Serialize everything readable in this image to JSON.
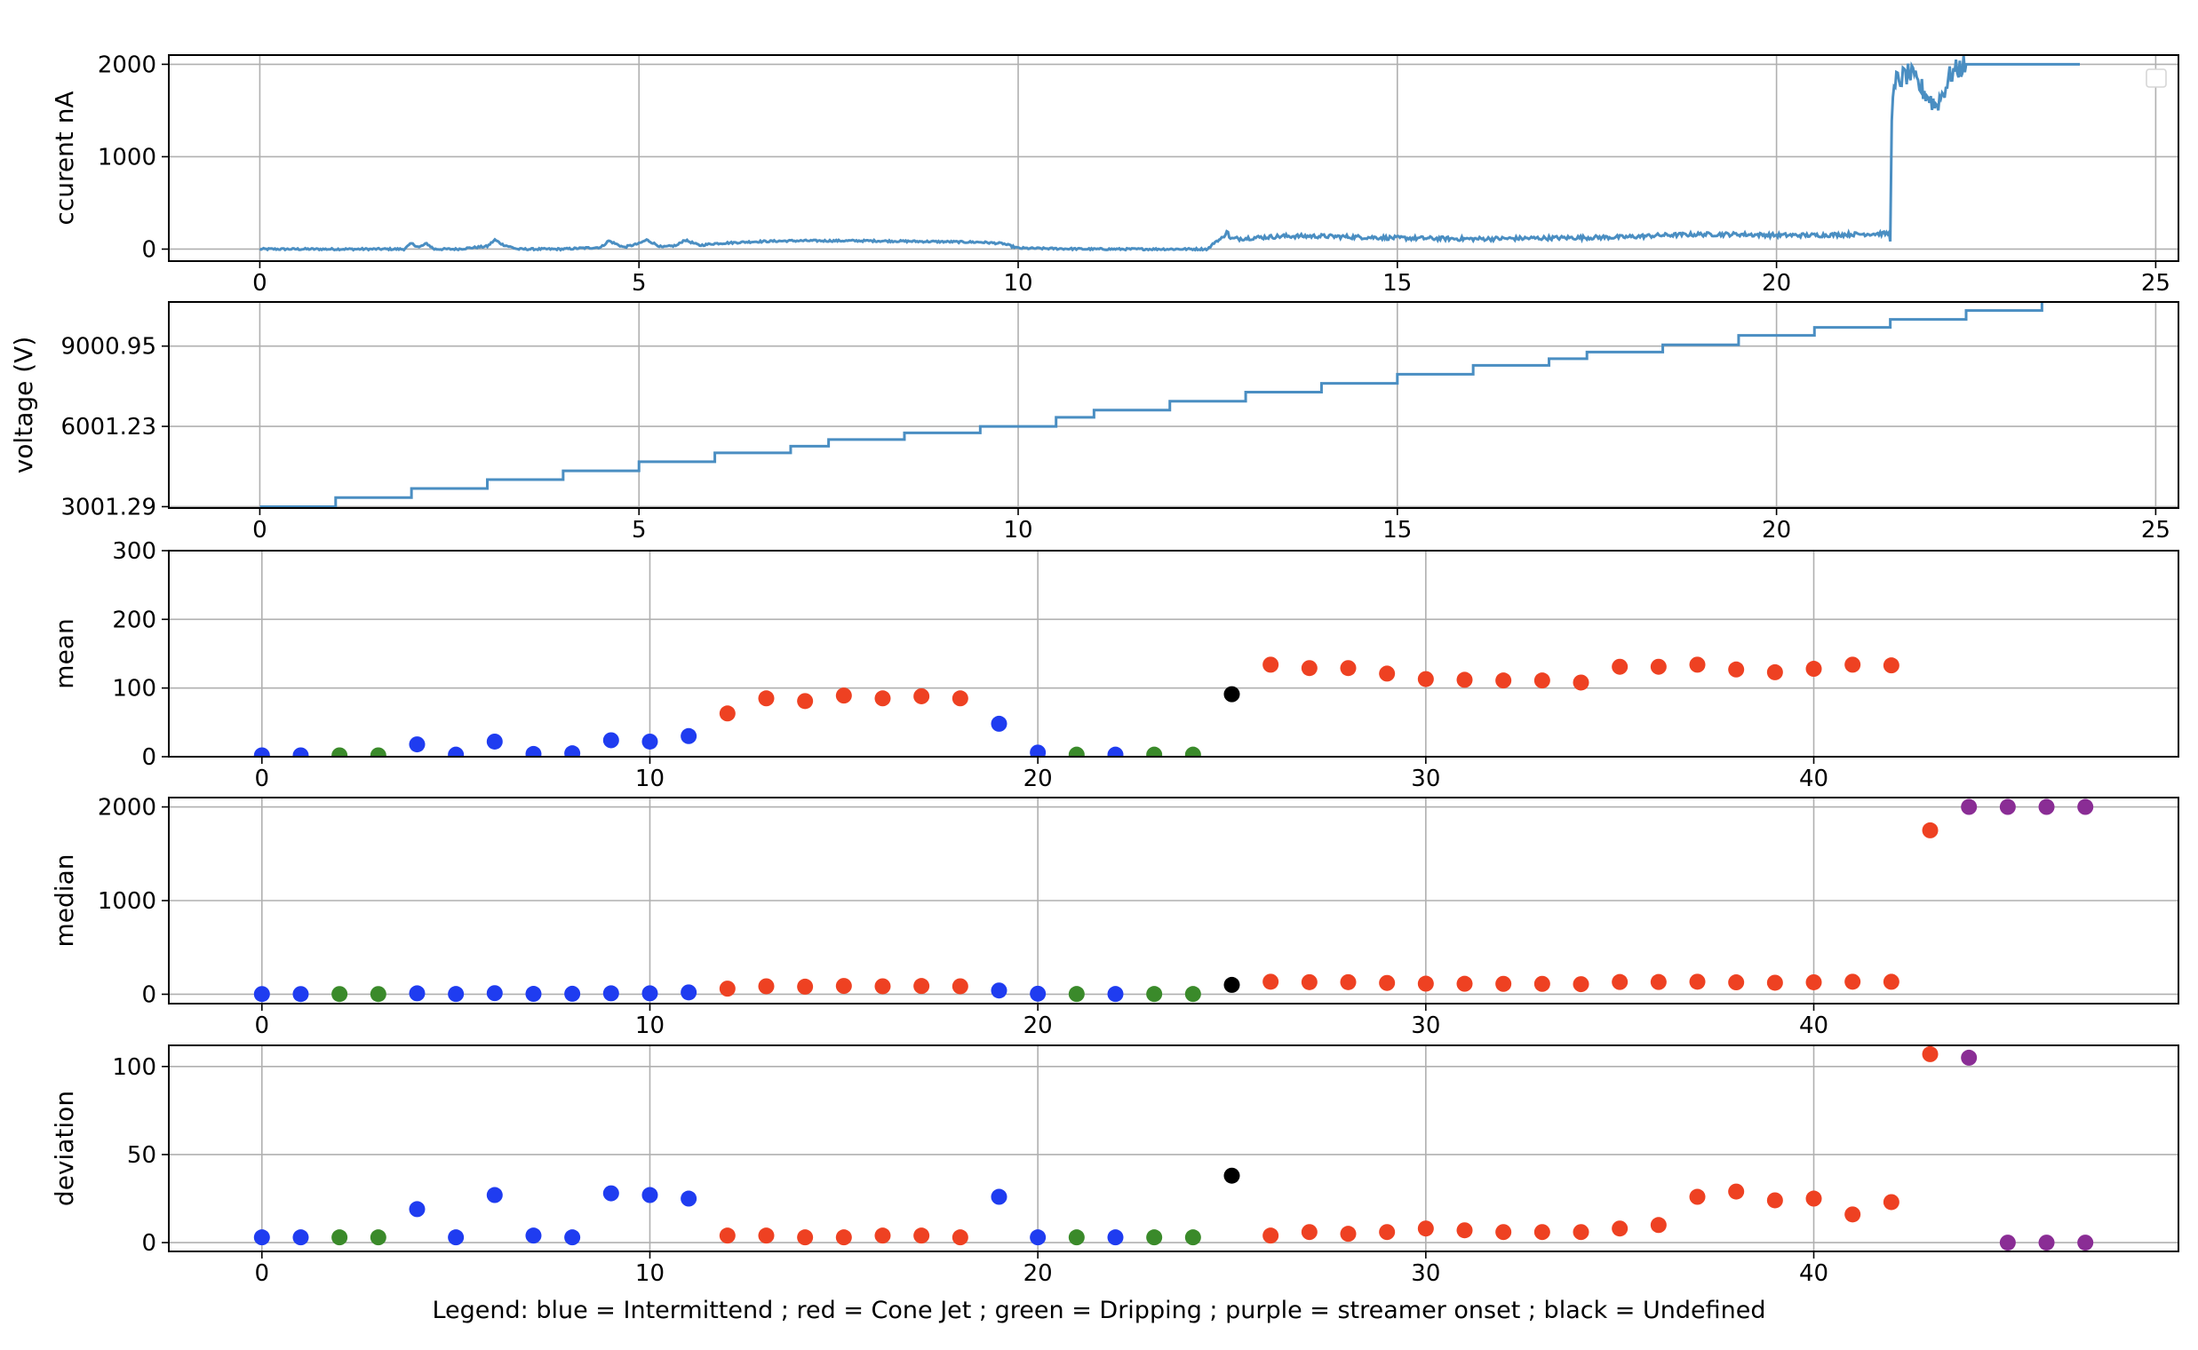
{
  "legend_text": "Legend:  blue = Intermittend ; red = Cone Jet ; green = Dripping ; purple = streamer onset ; black = Undefined",
  "colors": {
    "line": "#4a8ec2",
    "Intermittend": "#1f3cf0",
    "Cone Jet": "#ee4122",
    "Dripping": "#3a8a2a",
    "streamer onset": "#8a2d95",
    "Undefined": "#000000"
  },
  "chart_data": [
    {
      "id": "current",
      "type": "line",
      "ylabel": "ccurent nA",
      "xlim": [
        -1.2,
        25.3
      ],
      "ylim": [
        -130,
        2100
      ],
      "xticks": [
        0,
        5,
        10,
        15,
        20,
        25
      ],
      "yticks": [
        0,
        1000,
        2000
      ],
      "ytick_labels": [
        "0",
        "1000",
        "2000"
      ],
      "grid": true,
      "empty_legend": "top-right",
      "series": [
        {
          "x": [
            0,
            1,
            1.9,
            2.0,
            2.1,
            2.2,
            2.3,
            2.6,
            3.0,
            3.1,
            3.2,
            3.4,
            4.0,
            4.5,
            4.6,
            4.8,
            5.0,
            5.1,
            5.3,
            5.5,
            5.6,
            5.8,
            6.0,
            6.5,
            7.0,
            8.0,
            9.0,
            9.5,
            9.8,
            10.0,
            11.0,
            12.0,
            12.5,
            12.6,
            12.7,
            12.75,
            12.8,
            13.5,
            14.0,
            15.0,
            16.0,
            17.0,
            18.0,
            18.5,
            19.0,
            19.5,
            20.0,
            20.5,
            21.0,
            21.5,
            21.52,
            21.58,
            21.65,
            21.75,
            21.9,
            22.0,
            22.1,
            22.2,
            22.3,
            22.5,
            23.0,
            23.5,
            24.0
          ],
          "y": [
            0,
            0,
            0,
            60,
            20,
            60,
            0,
            0,
            30,
            100,
            50,
            0,
            0,
            20,
            90,
            20,
            60,
            100,
            20,
            40,
            100,
            40,
            60,
            80,
            90,
            90,
            80,
            75,
            60,
            10,
            0,
            0,
            0,
            80,
            120,
            200,
            110,
            140,
            140,
            120,
            110,
            120,
            130,
            150,
            160,
            160,
            150,
            150,
            160,
            170,
            1500,
            1820,
            1850,
            1900,
            1750,
            1650,
            1550,
            1700,
            1900,
            2000,
            2000,
            2000,
            2000
          ]
        }
      ]
    },
    {
      "id": "voltage",
      "type": "line",
      "ylabel": "voltage (V)",
      "xlim": [
        -1.2,
        25.3
      ],
      "ylim": [
        2950,
        10650
      ],
      "xticks": [
        0,
        5,
        10,
        15,
        20,
        25
      ],
      "yticks": [
        3001.29,
        6001.23,
        9000.95
      ],
      "ytick_labels": [
        "3001.29",
        "6001.23",
        "9000.95"
      ],
      "grid": true,
      "series": [
        {
          "steps": [
            [
              0,
              3001
            ],
            [
              1,
              3340
            ],
            [
              2,
              3680
            ],
            [
              3,
              4010
            ],
            [
              4,
              4340
            ],
            [
              5,
              4680
            ],
            [
              6,
              5010
            ],
            [
              7,
              5260
            ],
            [
              7.5,
              5510
            ],
            [
              8.5,
              5760
            ],
            [
              9.5,
              6001
            ],
            [
              10.5,
              6340
            ],
            [
              11,
              6610
            ],
            [
              12,
              6940
            ],
            [
              13,
              7280
            ],
            [
              14,
              7610
            ],
            [
              15,
              7950
            ],
            [
              16,
              8280
            ],
            [
              17,
              8530
            ],
            [
              17.5,
              8780
            ],
            [
              18.5,
              9050
            ],
            [
              19.5,
              9400
            ],
            [
              20.5,
              9700
            ],
            [
              21.5,
              10000
            ],
            [
              22.5,
              10330
            ],
            [
              23.5,
              10700
            ]
          ],
          "x_end": 24
        }
      ]
    },
    {
      "id": "mean",
      "type": "scatter",
      "ylabel": "mean",
      "xlim": [
        -2.4,
        49.4
      ],
      "ylim": [
        0,
        300
      ],
      "xticks": [
        0,
        10,
        20,
        30,
        40
      ],
      "yticks": [
        0,
        100,
        200,
        300
      ],
      "ytick_labels": [
        "0",
        "100",
        "200",
        "300"
      ],
      "grid": true,
      "points": [
        [
          0,
          2,
          "Intermittend"
        ],
        [
          1,
          2,
          "Intermittend"
        ],
        [
          2,
          2,
          "Dripping"
        ],
        [
          3,
          2,
          "Dripping"
        ],
        [
          4,
          18,
          "Intermittend"
        ],
        [
          5,
          3,
          "Intermittend"
        ],
        [
          6,
          22,
          "Intermittend"
        ],
        [
          7,
          4,
          "Intermittend"
        ],
        [
          8,
          5,
          "Intermittend"
        ],
        [
          9,
          24,
          "Intermittend"
        ],
        [
          10,
          22,
          "Intermittend"
        ],
        [
          11,
          30,
          "Intermittend"
        ],
        [
          12,
          63,
          "Cone Jet"
        ],
        [
          13,
          85,
          "Cone Jet"
        ],
        [
          14,
          81,
          "Cone Jet"
        ],
        [
          15,
          89,
          "Cone Jet"
        ],
        [
          16,
          85,
          "Cone Jet"
        ],
        [
          17,
          88,
          "Cone Jet"
        ],
        [
          18,
          85,
          "Cone Jet"
        ],
        [
          19,
          48,
          "Intermittend"
        ],
        [
          20,
          6,
          "Intermittend"
        ],
        [
          21,
          3,
          "Dripping"
        ],
        [
          22,
          3,
          "Intermittend"
        ],
        [
          23,
          3,
          "Dripping"
        ],
        [
          24,
          3,
          "Dripping"
        ],
        [
          25,
          91,
          "Undefined"
        ],
        [
          26,
          134,
          "Cone Jet"
        ],
        [
          27,
          129,
          "Cone Jet"
        ],
        [
          28,
          129,
          "Cone Jet"
        ],
        [
          29,
          121,
          "Cone Jet"
        ],
        [
          30,
          113,
          "Cone Jet"
        ],
        [
          31,
          112,
          "Cone Jet"
        ],
        [
          32,
          111,
          "Cone Jet"
        ],
        [
          33,
          111,
          "Cone Jet"
        ],
        [
          34,
          108,
          "Cone Jet"
        ],
        [
          35,
          131,
          "Cone Jet"
        ],
        [
          36,
          131,
          "Cone Jet"
        ],
        [
          37,
          134,
          "Cone Jet"
        ],
        [
          38,
          127,
          "Cone Jet"
        ],
        [
          39,
          123,
          "Cone Jet"
        ],
        [
          40,
          128,
          "Cone Jet"
        ],
        [
          41,
          134,
          "Cone Jet"
        ],
        [
          42,
          133,
          "Cone Jet"
        ]
      ]
    },
    {
      "id": "median",
      "type": "scatter",
      "ylabel": "median",
      "xlim": [
        -2.4,
        49.4
      ],
      "ylim": [
        -100,
        2100
      ],
      "xticks": [
        0,
        10,
        20,
        30,
        40
      ],
      "yticks": [
        0,
        1000,
        2000
      ],
      "ytick_labels": [
        "0",
        "1000",
        "2000"
      ],
      "grid": true,
      "points": [
        [
          0,
          2,
          "Intermittend"
        ],
        [
          1,
          2,
          "Intermittend"
        ],
        [
          2,
          2,
          "Dripping"
        ],
        [
          3,
          2,
          "Dripping"
        ],
        [
          4,
          10,
          "Intermittend"
        ],
        [
          5,
          3,
          "Intermittend"
        ],
        [
          6,
          12,
          "Intermittend"
        ],
        [
          7,
          4,
          "Intermittend"
        ],
        [
          8,
          5,
          "Intermittend"
        ],
        [
          9,
          10,
          "Intermittend"
        ],
        [
          10,
          10,
          "Intermittend"
        ],
        [
          11,
          20,
          "Intermittend"
        ],
        [
          12,
          60,
          "Cone Jet"
        ],
        [
          13,
          85,
          "Cone Jet"
        ],
        [
          14,
          81,
          "Cone Jet"
        ],
        [
          15,
          89,
          "Cone Jet"
        ],
        [
          16,
          85,
          "Cone Jet"
        ],
        [
          17,
          88,
          "Cone Jet"
        ],
        [
          18,
          85,
          "Cone Jet"
        ],
        [
          19,
          40,
          "Intermittend"
        ],
        [
          20,
          6,
          "Intermittend"
        ],
        [
          21,
          3,
          "Dripping"
        ],
        [
          22,
          3,
          "Intermittend"
        ],
        [
          23,
          3,
          "Dripping"
        ],
        [
          24,
          3,
          "Dripping"
        ],
        [
          25,
          100,
          "Undefined"
        ],
        [
          26,
          134,
          "Cone Jet"
        ],
        [
          27,
          129,
          "Cone Jet"
        ],
        [
          28,
          129,
          "Cone Jet"
        ],
        [
          29,
          121,
          "Cone Jet"
        ],
        [
          30,
          113,
          "Cone Jet"
        ],
        [
          31,
          112,
          "Cone Jet"
        ],
        [
          32,
          111,
          "Cone Jet"
        ],
        [
          33,
          111,
          "Cone Jet"
        ],
        [
          34,
          108,
          "Cone Jet"
        ],
        [
          35,
          131,
          "Cone Jet"
        ],
        [
          36,
          131,
          "Cone Jet"
        ],
        [
          37,
          134,
          "Cone Jet"
        ],
        [
          38,
          127,
          "Cone Jet"
        ],
        [
          39,
          123,
          "Cone Jet"
        ],
        [
          40,
          128,
          "Cone Jet"
        ],
        [
          41,
          134,
          "Cone Jet"
        ],
        [
          42,
          133,
          "Cone Jet"
        ],
        [
          43,
          1750,
          "Cone Jet"
        ],
        [
          44,
          2000,
          "streamer onset"
        ],
        [
          45,
          2000,
          "streamer onset"
        ],
        [
          46,
          2000,
          "streamer onset"
        ],
        [
          47,
          2000,
          "streamer onset"
        ]
      ]
    },
    {
      "id": "deviation",
      "type": "scatter",
      "ylabel": "deviation",
      "xlim": [
        -2.4,
        49.4
      ],
      "ylim": [
        -5,
        112
      ],
      "xticks": [
        0,
        10,
        20,
        30,
        40
      ],
      "yticks": [
        0,
        50,
        100
      ],
      "ytick_labels": [
        "0",
        "50",
        "100"
      ],
      "grid": true,
      "points": [
        [
          0,
          3,
          "Intermittend"
        ],
        [
          1,
          3,
          "Intermittend"
        ],
        [
          2,
          3,
          "Dripping"
        ],
        [
          3,
          3,
          "Dripping"
        ],
        [
          4,
          19,
          "Intermittend"
        ],
        [
          5,
          3,
          "Intermittend"
        ],
        [
          6,
          27,
          "Intermittend"
        ],
        [
          7,
          4,
          "Intermittend"
        ],
        [
          8,
          3,
          "Intermittend"
        ],
        [
          9,
          28,
          "Intermittend"
        ],
        [
          10,
          27,
          "Intermittend"
        ],
        [
          11,
          25,
          "Intermittend"
        ],
        [
          12,
          4,
          "Cone Jet"
        ],
        [
          13,
          4,
          "Cone Jet"
        ],
        [
          14,
          3,
          "Cone Jet"
        ],
        [
          15,
          3,
          "Cone Jet"
        ],
        [
          16,
          4,
          "Cone Jet"
        ],
        [
          17,
          4,
          "Cone Jet"
        ],
        [
          18,
          3,
          "Cone Jet"
        ],
        [
          19,
          26,
          "Intermittend"
        ],
        [
          20,
          3,
          "Intermittend"
        ],
        [
          21,
          3,
          "Dripping"
        ],
        [
          22,
          3,
          "Intermittend"
        ],
        [
          23,
          3,
          "Dripping"
        ],
        [
          24,
          3,
          "Dripping"
        ],
        [
          25,
          38,
          "Undefined"
        ],
        [
          26,
          4,
          "Cone Jet"
        ],
        [
          27,
          6,
          "Cone Jet"
        ],
        [
          28,
          5,
          "Cone Jet"
        ],
        [
          29,
          6,
          "Cone Jet"
        ],
        [
          30,
          8,
          "Cone Jet"
        ],
        [
          31,
          7,
          "Cone Jet"
        ],
        [
          32,
          6,
          "Cone Jet"
        ],
        [
          33,
          6,
          "Cone Jet"
        ],
        [
          34,
          6,
          "Cone Jet"
        ],
        [
          35,
          8,
          "Cone Jet"
        ],
        [
          36,
          10,
          "Cone Jet"
        ],
        [
          37,
          26,
          "Cone Jet"
        ],
        [
          38,
          29,
          "Cone Jet"
        ],
        [
          39,
          24,
          "Cone Jet"
        ],
        [
          40,
          25,
          "Cone Jet"
        ],
        [
          41,
          16,
          "Cone Jet"
        ],
        [
          42,
          23,
          "Cone Jet"
        ],
        [
          43,
          107,
          "Cone Jet"
        ],
        [
          44,
          105,
          "streamer onset"
        ],
        [
          45,
          0,
          "streamer onset"
        ],
        [
          46,
          0,
          "streamer onset"
        ],
        [
          47,
          0,
          "streamer onset"
        ]
      ]
    }
  ]
}
